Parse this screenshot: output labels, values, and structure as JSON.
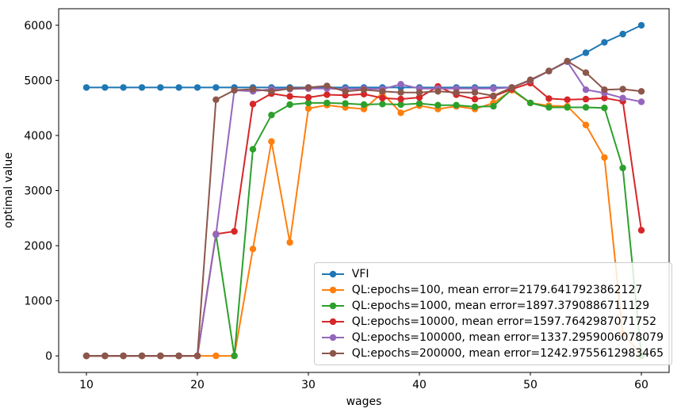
{
  "figure": {
    "background": "#ffffff",
    "xlabel": "wages",
    "ylabel": "optimal value"
  },
  "chart_data": {
    "type": "line",
    "title": "",
    "xlabel": "wages",
    "ylabel": "optimal value",
    "grid": false,
    "legend_position": "lower right",
    "xlim": [
      7.5,
      62.5
    ],
    "ylim": [
      -300,
      6300
    ],
    "x_ticks": [
      10,
      20,
      30,
      40,
      50,
      60
    ],
    "y_ticks": [
      0,
      1000,
      2000,
      3000,
      4000,
      5000,
      6000
    ],
    "x": [
      10,
      11.67,
      13.33,
      15,
      16.67,
      18.33,
      20,
      21.67,
      23.33,
      25,
      26.67,
      28.33,
      30,
      31.67,
      33.33,
      35,
      36.67,
      38.33,
      40,
      41.67,
      43.33,
      45,
      46.67,
      48.33,
      50,
      51.67,
      53.33,
      55,
      56.67,
      58.33,
      60
    ],
    "series": [
      {
        "name": "VFI",
        "color": "#1f77b4",
        "values": [
          4870,
          4870,
          4870,
          4870,
          4870,
          4870,
          4870,
          4870,
          4870,
          4870,
          4870,
          4870,
          4870,
          4870,
          4870,
          4870,
          4870,
          4870,
          4870,
          4870,
          4870,
          4870,
          4870,
          4870,
          5000,
          5170,
          5340,
          5500,
          5690,
          5840,
          6000
        ]
      },
      {
        "name": "QL:epochs=100, mean error=2179.6417923862127",
        "color": "#ff7f0e",
        "values": [
          0,
          0,
          0,
          0,
          0,
          0,
          0,
          0,
          0,
          1940,
          3890,
          2060,
          4490,
          4550,
          4510,
          4480,
          4770,
          4410,
          4540,
          4480,
          4530,
          4480,
          4590,
          4820,
          4590,
          4540,
          4530,
          4190,
          3600,
          400,
          30
        ]
      },
      {
        "name": "QL:epochs=1000, mean error=1897.3790886711129",
        "color": "#2ca02c",
        "values": [
          0,
          0,
          0,
          0,
          0,
          0,
          0,
          2200,
          0,
          3750,
          4370,
          4560,
          4590,
          4590,
          4580,
          4560,
          4570,
          4560,
          4580,
          4550,
          4550,
          4520,
          4530,
          4840,
          4590,
          4510,
          4510,
          4510,
          4500,
          3410,
          0
        ]
      },
      {
        "name": "QL:epochs=10000, mean error=1597.7642987071752",
        "color": "#d62728",
        "values": [
          0,
          0,
          0,
          0,
          0,
          0,
          0,
          2210,
          2260,
          4570,
          4760,
          4710,
          4690,
          4740,
          4730,
          4750,
          4680,
          4660,
          4690,
          4890,
          4740,
          4660,
          4710,
          4840,
          4950,
          4670,
          4650,
          4660,
          4680,
          4620,
          2280
        ]
      },
      {
        "name": "QL:epochs=100000, mean error=1337.2959006078079",
        "color": "#9467bd",
        "values": [
          0,
          0,
          0,
          0,
          0,
          0,
          0,
          2200,
          4820,
          4800,
          4840,
          4840,
          4850,
          4850,
          4840,
          4850,
          4840,
          4930,
          4850,
          4850,
          4850,
          4850,
          4850,
          4870,
          5000,
          5170,
          5340,
          4830,
          4770,
          4680,
          4610
        ]
      },
      {
        "name": "QL:epochs=200000, mean error=1242.9755612983465",
        "color": "#8c564b",
        "values": [
          0,
          0,
          0,
          0,
          0,
          0,
          0,
          4650,
          4820,
          4840,
          4800,
          4850,
          4870,
          4900,
          4800,
          4830,
          4800,
          4780,
          4780,
          4800,
          4780,
          4780,
          4720,
          4870,
          5010,
          5170,
          5350,
          5140,
          4830,
          4840,
          4800
        ]
      }
    ]
  }
}
